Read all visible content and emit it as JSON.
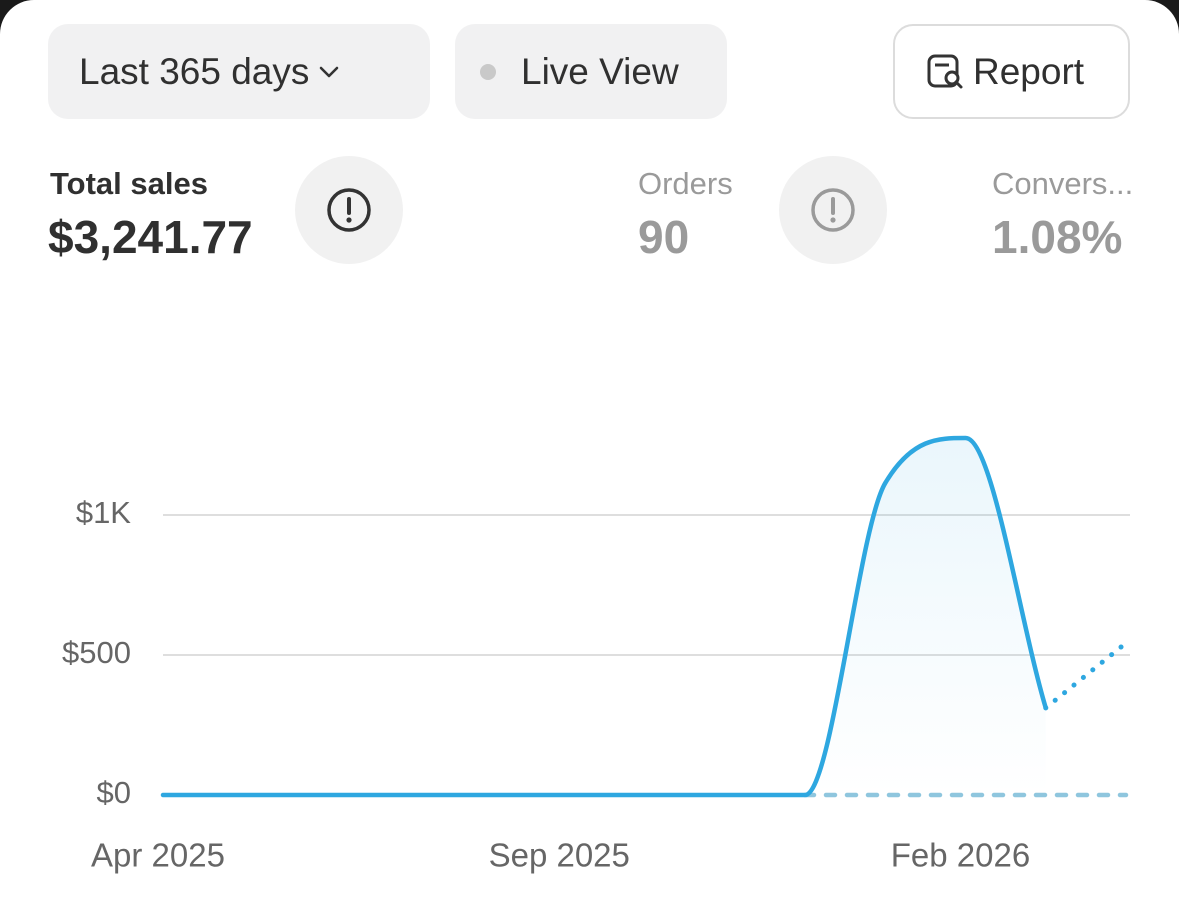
{
  "controls": {
    "date_range": "Last 365 days",
    "live_view": "Live View",
    "report": "Report"
  },
  "metrics": [
    {
      "label": "Total sales",
      "value": "$3,241.77"
    },
    {
      "label": "Orders",
      "value": "90"
    },
    {
      "label": "Convers...",
      "value": "1.08%"
    }
  ],
  "chart_data": {
    "type": "line",
    "categories": [
      "Apr 2025",
      null,
      null,
      null,
      null,
      "Sep 2025",
      null,
      null,
      null,
      null,
      "Feb 2026",
      null,
      null
    ],
    "series": [
      {
        "color": "#2ea7e0",
        "line_style": "solid",
        "fill": true,
        "values": [
          0,
          0,
          0,
          0,
          0,
          0,
          0,
          0,
          0,
          1114,
          1275,
          311,
          null
        ]
      },
      {
        "color": "#2ea7e0",
        "line_style": "dotted",
        "values": [
          null,
          null,
          null,
          null,
          null,
          null,
          null,
          null,
          null,
          null,
          null,
          311,
          543
        ]
      },
      {
        "color": "#8fc6de",
        "line_style": "dashed",
        "values": [
          null,
          null,
          null,
          null,
          null,
          null,
          null,
          null,
          0,
          0,
          0,
          0,
          0
        ]
      }
    ],
    "ylim": [
      0,
      1400
    ],
    "yticks": [
      {
        "value": 0,
        "label": "$0"
      },
      {
        "value": 500,
        "label": "$500"
      },
      {
        "value": 1000,
        "label": "$1K"
      }
    ],
    "grid": true
  }
}
